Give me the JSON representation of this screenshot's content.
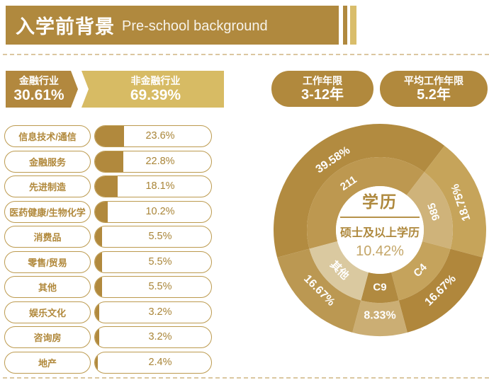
{
  "header": {
    "title_zh": "入学前背景",
    "title_en": "Pre-school background"
  },
  "industry_split": {
    "finance": {
      "label": "金融行业",
      "value": "30.61%"
    },
    "non_finance": {
      "label": "非金融行业",
      "value": "69.39%"
    }
  },
  "badges": [
    {
      "label": "工作年限",
      "value": "3-12年"
    },
    {
      "label": "平均工作年限",
      "value": "5.2年"
    }
  ],
  "colors": {
    "gold": "#b1893d",
    "gold_light": "#d7bb64",
    "pill_border": "#bc9a4e",
    "dash": "#dbc7a0"
  },
  "chart_data": [
    {
      "type": "bar",
      "orientation": "horizontal",
      "unit": "%",
      "bar_color": "#b1893d",
      "xlim": [
        0,
        25
      ],
      "categories": [
        "信息技术/通信",
        "金融服务",
        "先进制造",
        "医药健康/生物化学",
        "消费品",
        "零售/贸易",
        "其他",
        "娱乐文化",
        "咨询房",
        "地产"
      ],
      "values": [
        23.6,
        22.8,
        18.1,
        10.2,
        5.5,
        5.5,
        5.5,
        3.2,
        3.2,
        2.4
      ]
    },
    {
      "type": "pie",
      "variant": "two-ring-donut",
      "start_angle": -105,
      "unit": "%",
      "segments": [
        {
          "label": "211",
          "value": 39.58,
          "outer_color": "#b28b40",
          "inner_color": "#bd9850"
        },
        {
          "label": "985",
          "value": 18.75,
          "outer_color": "#c6a45a",
          "inner_color": "#cfb37a"
        },
        {
          "label": "C4",
          "value": 16.67,
          "outer_color": "#b0873c",
          "inner_color": "#c5a35c"
        },
        {
          "label": "C9",
          "value": 8.33,
          "outer_color": "#cbae74",
          "inner_color": "#b18a40"
        },
        {
          "label": "其他",
          "value": 16.67,
          "outer_color": "#bb9852",
          "inner_color": "#dac9a0"
        }
      ],
      "center": {
        "title": "学历",
        "subtitle": "硕士及以上学历",
        "subvalue": "10.42%"
      }
    }
  ]
}
